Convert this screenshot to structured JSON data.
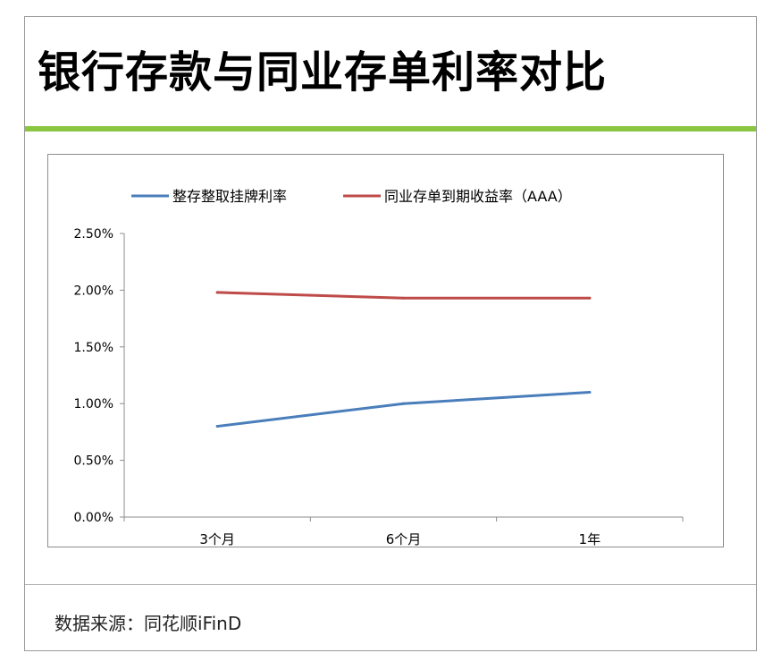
{
  "title": "银行存款与同业存单利率对比",
  "source": "数据来源：同花顺iFinD",
  "colors": {
    "accent_bar": "#8ac640",
    "series_1": "#4a7ebb",
    "series_2": "#be4b48"
  },
  "chart_data": {
    "type": "line",
    "categories": [
      "3个月",
      "6个月",
      "1年"
    ],
    "series": [
      {
        "name": "整存整取挂牌利率",
        "values": [
          0.8,
          1.0,
          1.1
        ],
        "color": "#4a7ebb"
      },
      {
        "name": "同业存单到期收益率（AAA）",
        "values": [
          1.98,
          1.93,
          1.93
        ],
        "color": "#be4b48"
      }
    ],
    "yticks": [
      "0.00%",
      "0.50%",
      "1.00%",
      "1.50%",
      "2.00%",
      "2.50%"
    ],
    "ylim": [
      0,
      2.5
    ],
    "legend": "top",
    "grid": false
  }
}
